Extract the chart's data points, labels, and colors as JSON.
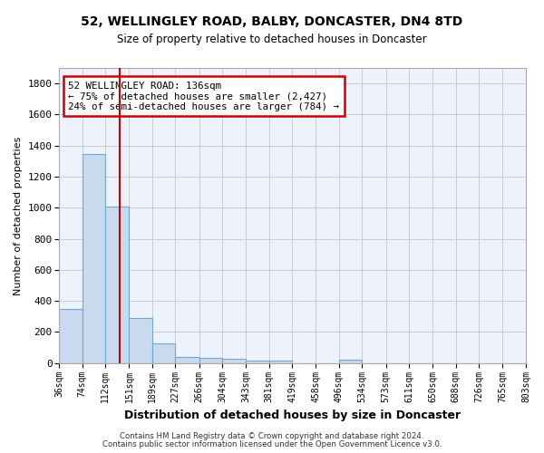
{
  "title1": "52, WELLINGLEY ROAD, BALBY, DONCASTER, DN4 8TD",
  "title2": "Size of property relative to detached houses in Doncaster",
  "xlabel": "Distribution of detached houses by size in Doncaster",
  "ylabel": "Number of detached properties",
  "footer1": "Contains HM Land Registry data © Crown copyright and database right 2024.",
  "footer2": "Contains public sector information licensed under the Open Government Licence v3.0.",
  "bins": [
    36,
    74,
    112,
    151,
    189,
    227,
    266,
    304,
    343,
    381,
    419,
    458,
    496,
    534,
    573,
    611,
    650,
    688,
    726,
    765,
    803
  ],
  "counts": [
    350,
    1345,
    1010,
    290,
    125,
    40,
    32,
    28,
    18,
    16,
    0,
    0,
    20,
    0,
    0,
    0,
    0,
    0,
    0,
    0
  ],
  "bar_color": "#c9d9ee",
  "bar_edge_color": "#6fa8d0",
  "grid_color": "#cccccc",
  "bg_color": "#eef2fc",
  "vline_x": 136,
  "vline_color": "#cc0000",
  "annotation_text": "52 WELLINGLEY ROAD: 136sqm\n← 75% of detached houses are smaller (2,427)\n24% of semi-detached houses are larger (784) →",
  "annotation_box_color": "#cc0000",
  "ylim": [
    0,
    1900
  ],
  "yticks": [
    0,
    200,
    400,
    600,
    800,
    1000,
    1200,
    1400,
    1600,
    1800
  ]
}
